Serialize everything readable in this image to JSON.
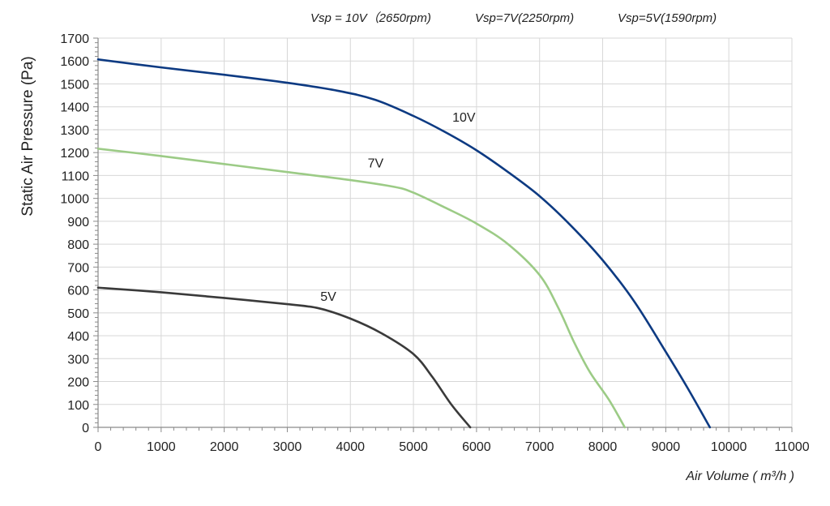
{
  "chart_data": {
    "type": "line",
    "header": [
      "Vsp = 10V（2650rpm)",
      "Vsp=7V(2250rpm)",
      "Vsp=5V(1590rpm)"
    ],
    "xlabel": "Air Volume ( m³/h )",
    "ylabel": "Static Air Pressure  (Pa)",
    "xlim": [
      0,
      11000
    ],
    "ylim": [
      0,
      1700
    ],
    "x_ticks": [
      0,
      1000,
      2000,
      3000,
      4000,
      5000,
      6000,
      7000,
      8000,
      9000,
      10000,
      11000
    ],
    "y_ticks": [
      0,
      100,
      200,
      300,
      400,
      500,
      600,
      700,
      800,
      900,
      1000,
      1100,
      1200,
      1300,
      1400,
      1500,
      1600,
      1700
    ],
    "grid": true,
    "series": [
      {
        "name": "10V",
        "color": "#0d3a82",
        "x": [
          0,
          1000,
          2000,
          3000,
          3800,
          4400,
          5000,
          5500,
          6000,
          6500,
          7000,
          7500,
          8000,
          8500,
          9000,
          9350,
          9700
        ],
        "y": [
          1607,
          1572,
          1540,
          1505,
          1470,
          1430,
          1360,
          1290,
          1210,
          1115,
          1010,
          880,
          730,
          550,
          330,
          170,
          0
        ]
      },
      {
        "name": "7V",
        "color": "#9ccb86",
        "x": [
          0,
          1000,
          2000,
          3000,
          4000,
          4700,
          5000,
          5500,
          6000,
          6500,
          7000,
          7300,
          7550,
          7800,
          8100,
          8350
        ],
        "y": [
          1217,
          1185,
          1150,
          1115,
          1080,
          1050,
          1025,
          960,
          890,
          800,
          665,
          520,
          370,
          240,
          120,
          0
        ]
      },
      {
        "name": "5V",
        "color": "#3a3a3a",
        "x": [
          0,
          1000,
          2000,
          3000,
          3500,
          4000,
          4500,
          5000,
          5300,
          5600,
          5900
        ],
        "y": [
          610,
          590,
          565,
          538,
          520,
          475,
          410,
          320,
          220,
          100,
          0
        ]
      }
    ],
    "annotations": [
      {
        "text": "10V",
        "x": 5800,
        "y": 1335
      },
      {
        "text": "7V",
        "x": 4400,
        "y": 1135
      },
      {
        "text": "5V",
        "x": 3650,
        "y": 552
      }
    ]
  }
}
